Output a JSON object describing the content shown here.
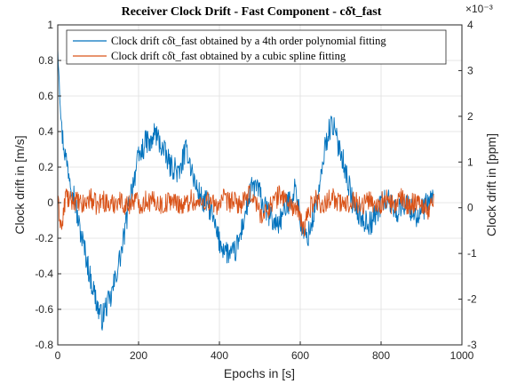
{
  "chart_data": {
    "type": "line",
    "title": "Receiver Clock Drift - Fast Component - cδ̇t_fast",
    "xlabel": "Epochs in [s]",
    "ylabel_left": "Clock drift in [m/s]",
    "ylabel_right": "Clock drift in [ppm]",
    "right_axis_exponent": "×10⁻³",
    "xlim": [
      0,
      1000
    ],
    "ylim": [
      -0.8,
      1
    ],
    "ylim_right": [
      -3,
      4
    ],
    "x_ticks": [
      "0",
      "200",
      "400",
      "600",
      "800",
      "1000"
    ],
    "y_ticks_left": [
      "-0.8",
      "-0.6",
      "-0.4",
      "-0.2",
      "0",
      "0.2",
      "0.4",
      "0.6",
      "0.8",
      "1"
    ],
    "y_ticks_right": [
      "-3",
      "-2",
      "-1",
      "0",
      "1",
      "2",
      "3",
      "4"
    ],
    "grid": true,
    "legend_position": "top",
    "series": [
      {
        "name": "Clock drift cδ̇t_fast obtained by a 4th order polynomial fitting",
        "color": "#0072BD",
        "x": [
          0,
          10,
          20,
          30,
          40,
          50,
          60,
          70,
          80,
          90,
          100,
          110,
          120,
          130,
          140,
          150,
          160,
          170,
          180,
          190,
          200,
          210,
          220,
          230,
          240,
          250,
          260,
          270,
          280,
          290,
          300,
          310,
          320,
          330,
          340,
          350,
          360,
          370,
          380,
          390,
          400,
          410,
          420,
          430,
          440,
          450,
          460,
          470,
          480,
          490,
          500,
          510,
          520,
          530,
          540,
          550,
          560,
          570,
          580,
          590,
          600,
          610,
          620,
          630,
          640,
          650,
          660,
          670,
          680,
          690,
          700,
          710,
          720,
          730,
          740,
          750,
          760,
          770,
          780,
          790,
          800,
          810,
          820,
          830,
          840,
          850,
          860,
          870,
          880,
          890,
          900,
          910,
          920,
          930
        ],
        "y": [
          0.9,
          0.4,
          0.25,
          0.15,
          0.05,
          -0.1,
          -0.2,
          -0.3,
          -0.42,
          -0.5,
          -0.6,
          -0.65,
          -0.58,
          -0.55,
          -0.45,
          -0.35,
          -0.25,
          -0.1,
          0.05,
          0.15,
          0.25,
          0.3,
          0.35,
          0.32,
          0.4,
          0.35,
          0.3,
          0.25,
          0.2,
          0.2,
          0.15,
          0.25,
          0.3,
          0.2,
          0.1,
          0.05,
          0.0,
          0.0,
          -0.05,
          -0.15,
          -0.22,
          -0.25,
          -0.28,
          -0.3,
          -0.27,
          -0.2,
          -0.1,
          0.0,
          0.08,
          0.1,
          0.05,
          -0.03,
          -0.05,
          -0.1,
          -0.12,
          -0.1,
          -0.05,
          0.0,
          0.05,
          0.08,
          -0.1,
          -0.2,
          -0.18,
          -0.1,
          0.0,
          0.1,
          0.3,
          0.4,
          0.45,
          0.35,
          0.3,
          0.2,
          0.1,
          0.0,
          -0.05,
          -0.08,
          -0.1,
          -0.12,
          -0.1,
          -0.05,
          0.0,
          0.02,
          0.0,
          -0.02,
          -0.05,
          -0.02,
          0.0,
          -0.03,
          -0.05,
          -0.08,
          -0.05,
          -0.02,
          0.0,
          0.03
        ],
        "noise": 0.07
      },
      {
        "name": "Clock drift cδ̇t_fast obtained by a cubic spline fitting",
        "color": "#D95319",
        "x": [
          0,
          10,
          20,
          30,
          40,
          50,
          60,
          70,
          80,
          90,
          100,
          110,
          120,
          130,
          140,
          150,
          160,
          170,
          180,
          190,
          200,
          210,
          220,
          230,
          240,
          250,
          260,
          270,
          280,
          290,
          300,
          310,
          320,
          330,
          340,
          350,
          360,
          370,
          380,
          390,
          400,
          410,
          420,
          430,
          440,
          450,
          460,
          470,
          480,
          490,
          500,
          510,
          520,
          530,
          540,
          550,
          560,
          570,
          580,
          590,
          600,
          610,
          620,
          630,
          640,
          650,
          660,
          670,
          680,
          690,
          700,
          710,
          720,
          730,
          740,
          750,
          760,
          770,
          780,
          790,
          800,
          810,
          820,
          830,
          840,
          850,
          860,
          870,
          880,
          890,
          900,
          910,
          920,
          930
        ],
        "y": [
          0.0,
          -0.15,
          0.05,
          0.0,
          0.02,
          0.0,
          -0.02,
          0.0,
          0.03,
          0.0,
          -0.02,
          0.02,
          0.0,
          -0.02,
          0.0,
          0.02,
          0.0,
          -0.02,
          0.0,
          0.02,
          0.0,
          -0.01,
          0.02,
          0.0,
          0.01,
          0.0,
          -0.02,
          0.0,
          0.02,
          0.0,
          0.0,
          -0.02,
          0.0,
          0.02,
          0.0,
          -0.01,
          0.0,
          0.02,
          0.0,
          -0.02,
          0.0,
          0.02,
          0.0,
          0.01,
          0.0,
          -0.01,
          0.0,
          0.03,
          0.05,
          0.0,
          -0.05,
          -0.08,
          -0.03,
          0.0,
          0.02,
          0.05,
          0.03,
          0.0,
          -0.02,
          -0.03,
          -0.1,
          -0.15,
          -0.05,
          0.0,
          0.02,
          0.0,
          -0.02,
          0.02,
          0.05,
          0.0,
          0.0,
          -0.02,
          0.0,
          0.03,
          0.0,
          -0.02,
          0.0,
          0.02,
          0.0,
          -0.02,
          0.0,
          0.02,
          0.0,
          -0.02,
          0.0,
          0.02,
          0.0,
          -0.02,
          0.0,
          0.02,
          0.0,
          -0.03,
          -0.05,
          0.05
        ],
        "noise": 0.06
      }
    ]
  }
}
